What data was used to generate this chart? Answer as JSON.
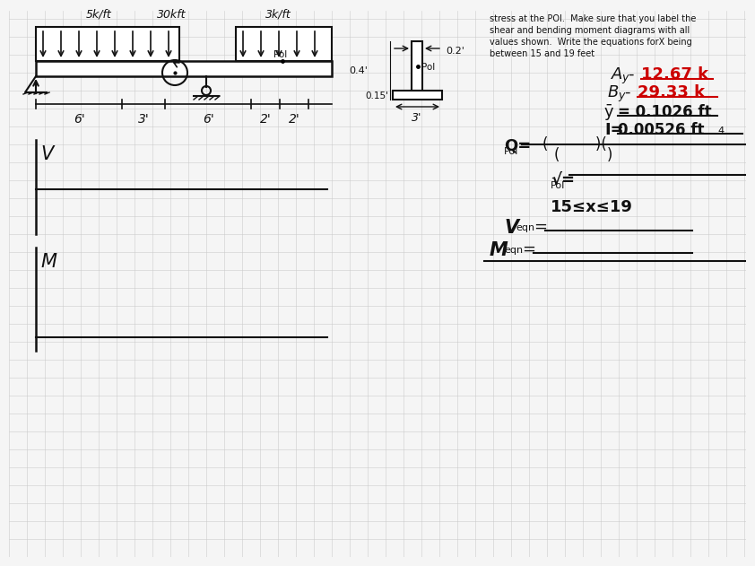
{
  "bg_color": "#f5f5f5",
  "grid_color": "#cccccc",
  "black_color": "#111111",
  "red_color": "#cc0000",
  "problem_text_lines": [
    "stress at the POI.  Make sure that you label the",
    "shear and bending moment diagrams with all",
    "values shown.  Write the equations forX being",
    "between 15 and 19 feet"
  ],
  "dist_load_left_label": "5k/ft",
  "dist_load_right_label": "3k/ft",
  "point_load_label": "30kft",
  "dim_labels": [
    "6'",
    "3'",
    "6'",
    "2'",
    "2'"
  ],
  "V_label": "V",
  "M_label": "M",
  "range_text": "15≤x≤19"
}
